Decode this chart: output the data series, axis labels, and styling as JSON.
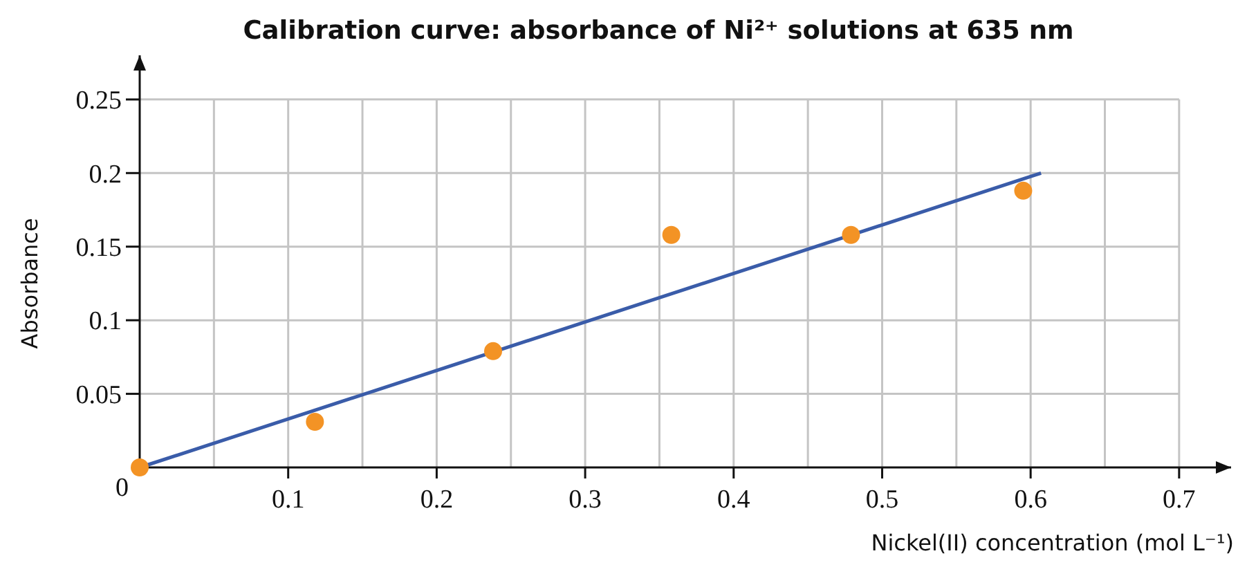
{
  "chart_data": {
    "type": "scatter",
    "title": "Calibration curve: absorbance of Ni²⁺ solutions at 635 nm",
    "xlabel": "Nickel(II) concentration (mol L⁻¹)",
    "ylabel": "Absorbance",
    "x": [
      0,
      0.118,
      0.238,
      0.358,
      0.479,
      0.595
    ],
    "series": [
      {
        "color": "#f39325",
        "values": [
          0,
          0.031,
          0.079,
          0.158,
          0.158,
          0.188
        ],
        "marker": "circle"
      },
      {
        "type": "line",
        "color": "#3a5ca9",
        "x": [
          0,
          0.607
        ],
        "values": [
          0,
          0.2
        ],
        "marker": "none",
        "line_style": "solid"
      }
    ],
    "xlim": [
      0,
      0.735
    ],
    "ylim": [
      0,
      0.28
    ],
    "xticks": [
      {
        "value": 0.05,
        "label": null
      },
      0.1,
      {
        "value": 0.15,
        "label": null
      },
      0.2,
      {
        "value": 0.25,
        "label": null
      },
      0.3,
      {
        "value": 0.35,
        "label": null
      },
      0.4,
      {
        "value": 0.45,
        "label": null
      },
      0.5,
      {
        "value": 0.55,
        "label": null
      },
      0.6,
      {
        "value": 0.65,
        "label": null
      },
      0.7
    ],
    "yticks": [
      0,
      0.05,
      0.1,
      0.15,
      0.2,
      0.25
    ],
    "grid": true
  }
}
